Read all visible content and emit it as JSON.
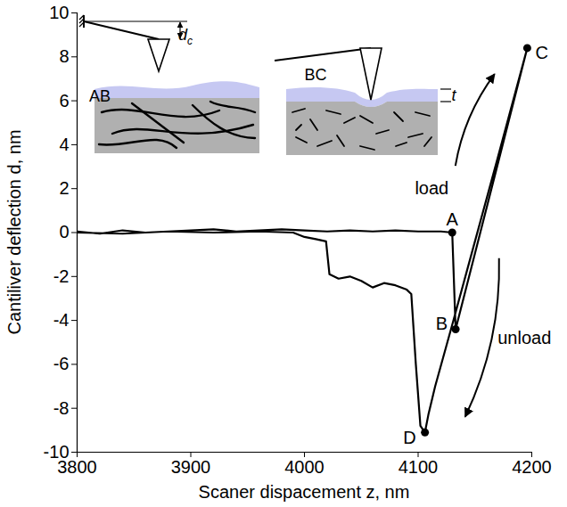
{
  "chart_data": {
    "type": "line",
    "x_label": "Scaner dispacement z, nm",
    "y_label": "Cantiliver deflection d, nm",
    "xlim": [
      3800,
      4200
    ],
    "xticks": [
      3800,
      3900,
      4000,
      4100,
      4200
    ],
    "ylim": [
      -10,
      10
    ],
    "yticks": [
      -10,
      -8,
      -6,
      -4,
      -2,
      0,
      2,
      4,
      6,
      8,
      10
    ],
    "grid": false,
    "series": [
      {
        "color": "#000000",
        "x": [
          3800,
          3820,
          3840,
          3860,
          3880,
          3900,
          3920,
          3940,
          3960,
          3980,
          4000,
          4020,
          4040,
          4060,
          4080,
          4100,
          4120,
          4130,
          4133,
          4150,
          4170,
          4196,
          4170,
          4150,
          4130,
          4115,
          4109,
          4106,
          4102,
          4098,
          4094,
          4090,
          4080,
          4070,
          4060,
          4050,
          4040,
          4030,
          4022,
          4019,
          4010,
          4000,
          3990,
          3960,
          3920,
          3880,
          3840,
          3800
        ],
        "values": [
          0.05,
          -0.05,
          0.1,
          0,
          0.05,
          0.1,
          0.15,
          0.05,
          0.1,
          0.15,
          0.1,
          0.05,
          0.1,
          0.05,
          0.1,
          0.05,
          0.05,
          0,
          -4.4,
          -0.95,
          3.1,
          8.4,
          3.4,
          -0.4,
          -4.2,
          -7.0,
          -8.3,
          -9.1,
          -8.8,
          -6.0,
          -2.8,
          -2.6,
          -2.4,
          -2.3,
          -2.5,
          -2.2,
          -2.0,
          -2.1,
          -1.9,
          -0.4,
          -0.3,
          -0.2,
          0,
          0.05,
          0,
          0.05,
          -0.05,
          0
        ]
      }
    ],
    "points": [
      {
        "label": "A",
        "x": 4130,
        "y": 0
      },
      {
        "label": "B",
        "x": 4133,
        "y": -4.4
      },
      {
        "label": "C",
        "x": 4196,
        "y": 8.4
      },
      {
        "label": "D",
        "x": 4106,
        "y": -9.1
      }
    ],
    "annotations": [
      {
        "text": "load",
        "x": 4112,
        "y": 2.0
      },
      {
        "text": "unload",
        "x": 4170,
        "y": -4.8
      }
    ],
    "inset": {
      "panels": [
        "AB",
        "BC"
      ],
      "deflection_label": "d",
      "deflection_subscript": "c",
      "thickness_label": "t"
    }
  }
}
